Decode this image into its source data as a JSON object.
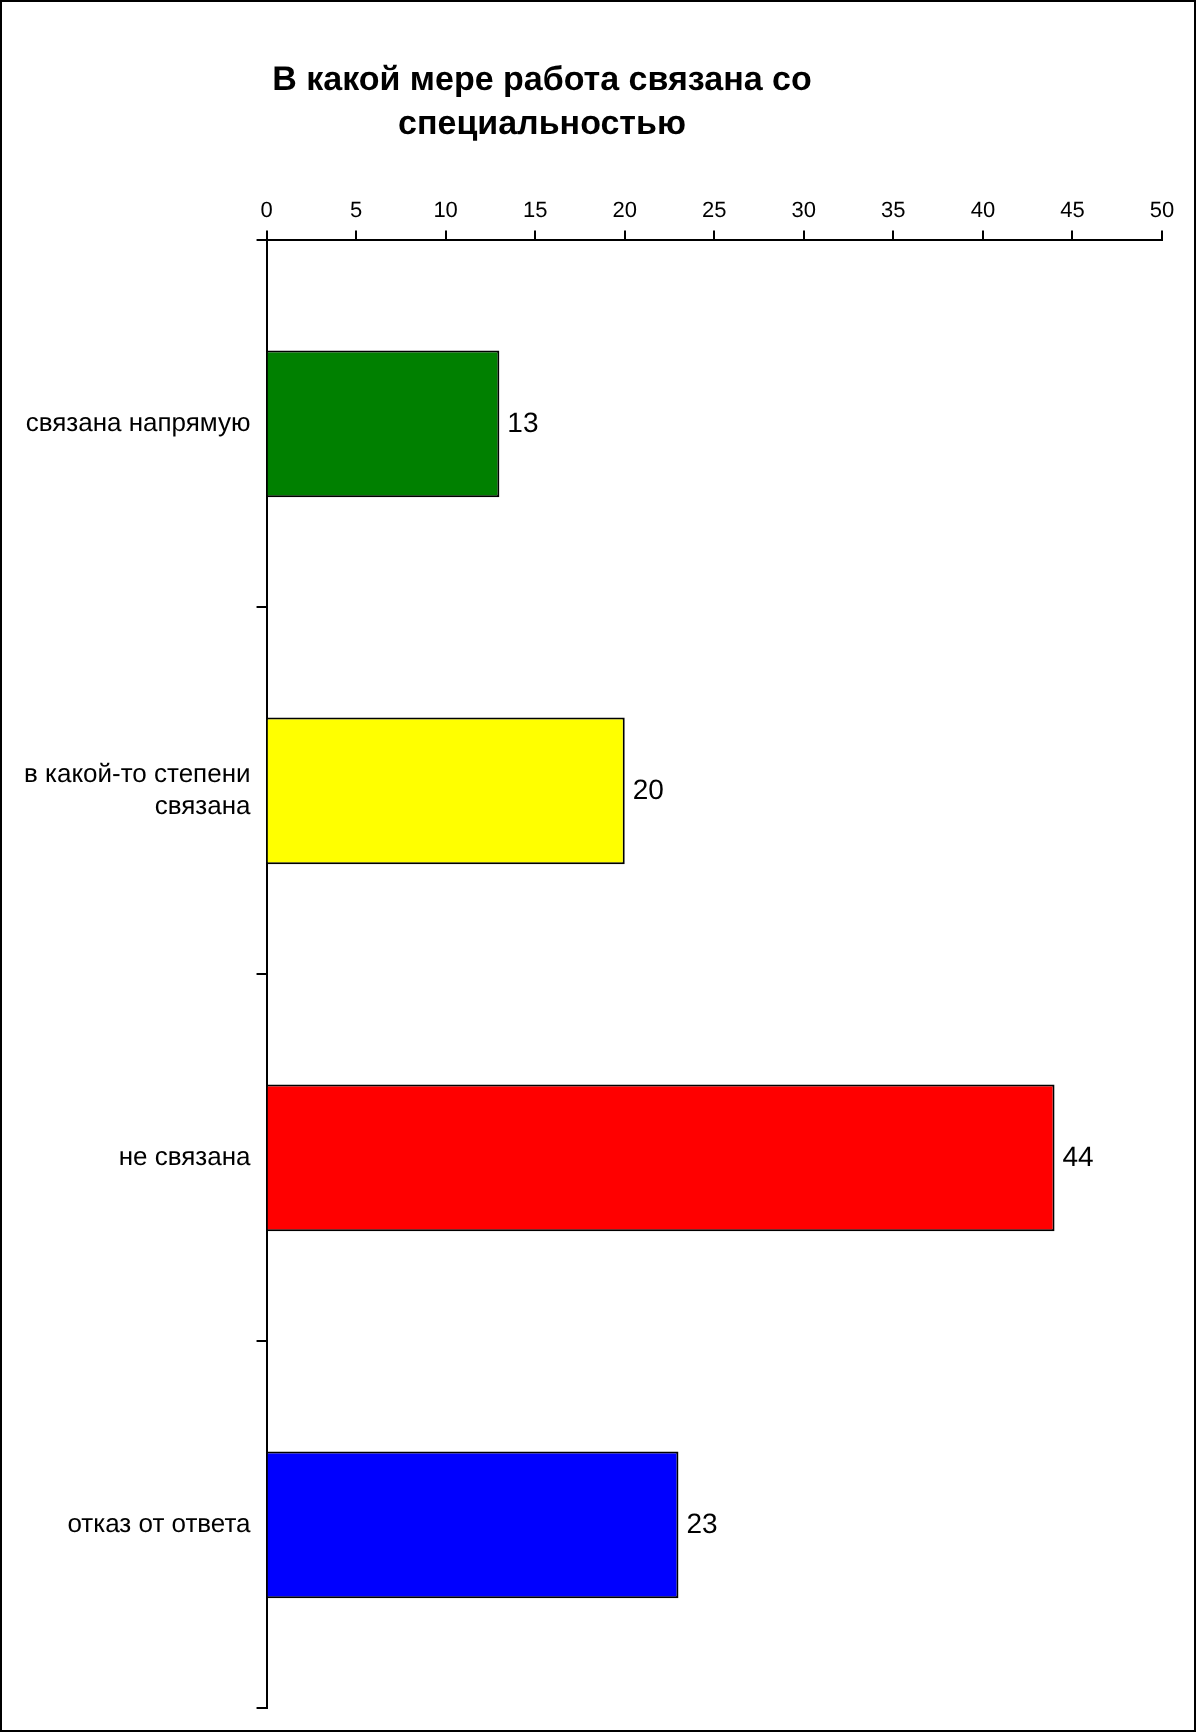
{
  "chart_data": {
    "type": "bar",
    "orientation": "horizontal",
    "title": "В какой мере работа связана со специальностью",
    "categories": [
      "связана напрямую",
      "в какой-то степени связана",
      "не связана",
      "отказ от ответа"
    ],
    "values": [
      13,
      20,
      44,
      23
    ],
    "colors": [
      "#008000",
      "#ffff00",
      "#ff0000",
      "#0000ff"
    ],
    "xlim": [
      0,
      50
    ],
    "xticks": [
      0,
      5,
      10,
      15,
      20,
      25,
      30,
      35,
      40,
      45,
      50
    ],
    "grid": false,
    "legend": false,
    "data_labels": true
  }
}
